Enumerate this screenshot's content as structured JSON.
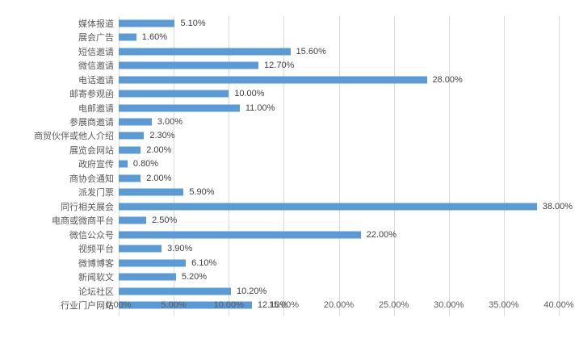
{
  "chart_data": {
    "type": "bar",
    "orientation": "horizontal",
    "title": "",
    "xlabel": "",
    "ylabel": "",
    "xlim": [
      0,
      40
    ],
    "grid": true,
    "legend": "none",
    "categories": [
      "媒体报道",
      "展会广告",
      "短信邀请",
      "微信邀请",
      "电话邀请",
      "邮寄参观函",
      "电邮邀请",
      "参展商邀请",
      "商贸伙伴或他人介绍",
      "展览会网站",
      "政府宣传",
      "商协会通知",
      "派发门票",
      "同行相关展会",
      "电商或微商平台",
      "微信公众号",
      "视频平台",
      "微博博客",
      "新闻软文",
      "论坛社区",
      "行业门户网站"
    ],
    "values": [
      5.1,
      1.6,
      15.6,
      12.7,
      28.0,
      10.0,
      11.0,
      3.0,
      2.3,
      2.0,
      0.8,
      2.0,
      5.9,
      38.0,
      2.5,
      22.0,
      3.9,
      6.1,
      5.2,
      10.2,
      12.1
    ],
    "value_labels": [
      "5.10%",
      "1.60%",
      "15.60%",
      "12.70%",
      "28.00%",
      "10.00%",
      "11.00%",
      "3.00%",
      "2.30%",
      "2.00%",
      "0.80%",
      "2.00%",
      "5.90%",
      "38.00%",
      "2.50%",
      "22.00%",
      "3.90%",
      "6.10%",
      "5.20%",
      "10.20%",
      "12.10%"
    ],
    "xticks": [
      0,
      5,
      10,
      15,
      20,
      25,
      30,
      35,
      40
    ],
    "xtick_labels": [
      "0.00%",
      "5.00%",
      "10.00%",
      "15.00%",
      "20.00%",
      "25.00%",
      "30.00%",
      "35.00%",
      "40.00%"
    ],
    "colors": {
      "bar": "#5b9bd5",
      "gridline": "#d9d9d9",
      "value_label_text": "#404040",
      "axis_label_text": "#595959",
      "background": "#ffffff"
    }
  }
}
